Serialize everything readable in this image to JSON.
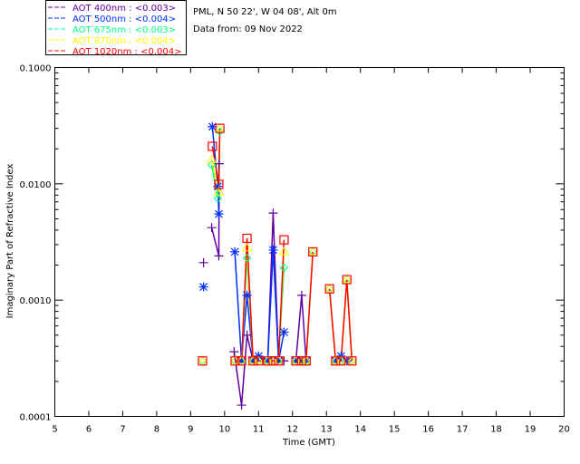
{
  "header": {
    "site": "PML, N 50 22', W 04 08', Alt 0m",
    "date": "Data from: 09 Nov 2022"
  },
  "chart_data": {
    "type": "line",
    "xlabel": "Time (GMT)",
    "ylabel": "Imaginary Part of Refractive Index",
    "xlim": [
      5,
      20
    ],
    "ylim": [
      0.0001,
      0.1
    ],
    "yscale": "log",
    "xticks": [
      "5",
      "6",
      "7",
      "8",
      "9",
      "10",
      "11",
      "12",
      "13",
      "14",
      "15",
      "16",
      "17",
      "18",
      "19",
      "20"
    ],
    "yticks": [
      "0.1000",
      "0.0100",
      "0.0010",
      "0.0001"
    ],
    "legend": {
      "placement": "top-left-outside",
      "entries": [
        {
          "label": "AOT  400nm : <0.003>",
          "color": "#6000a0"
        },
        {
          "label": "AOT  500nm : <0.004>",
          "color": "#0030ff"
        },
        {
          "label": "AOT  675nm : <0.003>",
          "color": "#00ff80"
        },
        {
          "label": "AOT  870nm : <0.004>",
          "color": "#ffff00"
        },
        {
          "label": "AOT 1020nm : <0.004>",
          "color": "#ff0000"
        }
      ]
    },
    "series": [
      {
        "name": "AOT 400nm",
        "color": "#6000a0",
        "marker": "plus",
        "points": [
          [
            9.38,
            0.0021
          ],
          null,
          [
            9.62,
            0.0042
          ],
          [
            9.83,
            0.0024
          ],
          [
            9.84,
            0.0149
          ],
          null,
          [
            10.28,
            0.00036
          ],
          [
            10.5,
            0.000125
          ],
          [
            10.66,
            0.0005
          ],
          [
            10.84,
            0.0003
          ],
          [
            11.0,
            0.00033
          ],
          [
            11.27,
            0.0003
          ],
          [
            11.43,
            0.0056
          ],
          [
            11.59,
            0.0003
          ],
          [
            11.75,
            0.0003
          ],
          null,
          [
            12.1,
            0.0003
          ],
          [
            12.27,
            0.0011
          ],
          [
            12.4,
            0.0003
          ]
        ]
      },
      {
        "name": "AOT 500nm",
        "color": "#0030ff",
        "marker": "asterisk",
        "points": [
          [
            9.38,
            0.0013
          ],
          null,
          [
            9.64,
            0.031
          ],
          [
            9.8,
            0.0095
          ],
          [
            9.83,
            0.0055
          ],
          null,
          [
            10.3,
            0.0026
          ],
          [
            10.5,
            0.0003
          ],
          [
            10.66,
            0.0011
          ],
          [
            10.84,
            0.0003
          ],
          [
            11.0,
            0.00033
          ],
          [
            11.27,
            0.0003
          ],
          [
            11.43,
            0.0027
          ],
          [
            11.59,
            0.0003
          ],
          [
            11.75,
            0.00053
          ],
          null,
          [
            12.1,
            0.0003
          ],
          [
            12.27,
            0.0003
          ],
          [
            12.4,
            0.0003
          ],
          null,
          [
            13.27,
            0.0003
          ],
          [
            13.43,
            0.00033
          ],
          [
            13.6,
            0.0003
          ]
        ]
      },
      {
        "name": "AOT 675nm",
        "color": "#00ff80",
        "marker": "diamond",
        "points": [
          [
            9.35,
            0.0003
          ],
          null,
          [
            9.62,
            0.0145
          ],
          [
            9.8,
            0.0075
          ],
          [
            9.86,
            0.028
          ],
          null,
          [
            10.31,
            0.0003
          ],
          [
            10.5,
            0.0003
          ],
          [
            10.66,
            0.0023
          ],
          [
            10.84,
            0.0003
          ],
          [
            11.0,
            0.0003
          ],
          [
            11.27,
            0.0003
          ],
          [
            11.43,
            0.0003
          ],
          [
            11.59,
            0.0003
          ],
          [
            11.75,
            0.0019
          ],
          null,
          [
            12.1,
            0.0003
          ],
          [
            12.27,
            0.0003
          ],
          [
            12.4,
            0.0003
          ],
          [
            12.6,
            0.0026
          ],
          null,
          [
            13.09,
            0.00125
          ],
          [
            13.27,
            0.0003
          ],
          [
            13.43,
            0.0003
          ],
          [
            13.6,
            0.0015
          ],
          [
            13.75,
            0.0003
          ]
        ]
      },
      {
        "name": "AOT 870nm",
        "color": "#ffff00",
        "marker": "triangle",
        "points": [
          [
            9.35,
            0.0003
          ],
          null,
          [
            9.62,
            0.016
          ],
          [
            9.83,
            0.0085
          ],
          [
            9.86,
            0.03
          ],
          null,
          [
            10.31,
            0.0003
          ],
          [
            10.5,
            0.0003
          ],
          [
            10.66,
            0.0028
          ],
          [
            10.84,
            0.0003
          ],
          [
            11.0,
            0.0003
          ],
          [
            11.27,
            0.0003
          ],
          [
            11.43,
            0.0003
          ],
          [
            11.59,
            0.0003
          ],
          [
            11.75,
            0.0026
          ],
          null,
          [
            12.1,
            0.0003
          ],
          [
            12.27,
            0.0003
          ],
          [
            12.4,
            0.0003
          ],
          [
            12.6,
            0.0026
          ],
          null,
          [
            13.09,
            0.00125
          ],
          [
            13.27,
            0.0003
          ],
          [
            13.43,
            0.0003
          ],
          [
            13.6,
            0.0015
          ],
          [
            13.75,
            0.0003
          ]
        ]
      },
      {
        "name": "AOT 1020nm",
        "color": "#ff0000",
        "marker": "square",
        "points": [
          [
            9.35,
            0.0003
          ],
          null,
          [
            9.64,
            0.021
          ],
          [
            9.83,
            0.0099
          ],
          [
            9.86,
            0.03
          ],
          null,
          [
            10.31,
            0.0003
          ],
          [
            10.5,
            0.0003
          ],
          [
            10.66,
            0.0034
          ],
          [
            10.84,
            0.0003
          ],
          [
            11.0,
            0.0003
          ],
          [
            11.27,
            0.0003
          ],
          [
            11.43,
            0.0003
          ],
          [
            11.59,
            0.0003
          ],
          [
            11.75,
            0.0033
          ],
          null,
          [
            12.1,
            0.0003
          ],
          [
            12.27,
            0.0003
          ],
          [
            12.4,
            0.0003
          ],
          [
            12.6,
            0.0026
          ],
          null,
          [
            13.09,
            0.00125
          ],
          [
            13.27,
            0.0003
          ],
          [
            13.43,
            0.0003
          ],
          [
            13.6,
            0.0015
          ],
          [
            13.75,
            0.0003
          ]
        ]
      }
    ]
  }
}
